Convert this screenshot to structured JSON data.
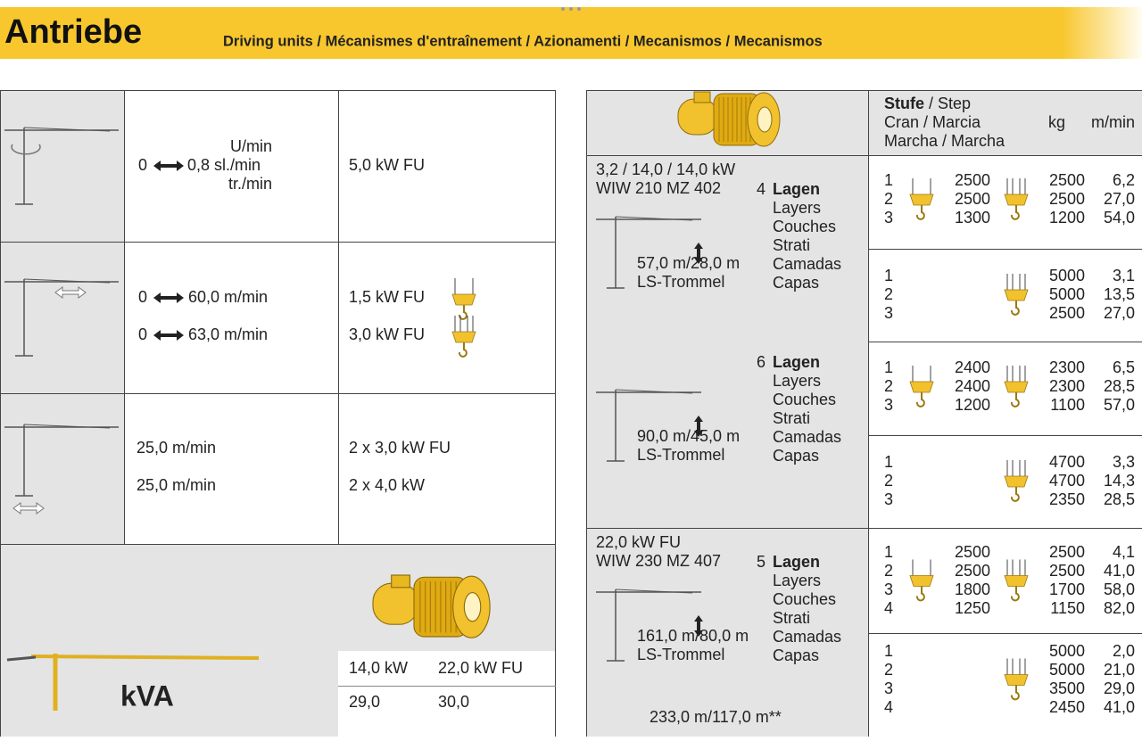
{
  "header": {
    "title": "Antriebe",
    "subtitle": "Driving units / Mécanismes d'entraînement / Azionamenti / Mecanismos / Mecanismos"
  },
  "left_table": {
    "slewing": {
      "top_unit": "U/min",
      "from": "0",
      "to": "0,8 sl./min",
      "bottom_unit": "tr./min",
      "power": "5,0 kW FU"
    },
    "trolley": {
      "speeds": [
        {
          "from": "0",
          "to": "60,0 m/min"
        },
        {
          "from": "0",
          "to": "63,0 m/min"
        }
      ],
      "powers": [
        "1,5 kW FU",
        "3,0 kW FU"
      ]
    },
    "travel": {
      "speeds": [
        "25,0 m/min",
        "25,0 m/min"
      ],
      "powers": [
        "2 x 3,0 kW FU",
        "2 x 4,0 kW"
      ]
    },
    "kva": {
      "label": "kVA",
      "headers": [
        "14,0 kW",
        "22,0 kW FU"
      ],
      "values": [
        "29,0",
        "30,0"
      ]
    }
  },
  "right_table": {
    "header": {
      "stufe": "Stufe",
      "step": "/ Step",
      "line2": "Cran / Marcia",
      "line3": "Marcha / Marcha",
      "kg": "kg",
      "speed": "m/min"
    },
    "drives": [
      {
        "power": "3,2 / 14,0 / 14,0 kW",
        "model": "WIW 210 MZ 402",
        "configs": [
          {
            "layers": "4",
            "lagen": "Lagen",
            "translations": [
              "Layers",
              "Couches",
              "Strati",
              "Camadas",
              "Capas"
            ],
            "rope": "57,0 m/28,0 m",
            "drum": "LS-Trommel"
          },
          {
            "layers": "6",
            "lagen": "Lagen",
            "translations": [
              "Layers",
              "Couches",
              "Strati",
              "Camadas",
              "Capas"
            ],
            "rope": "90,0 m/45,0 m",
            "drum": "LS-Trommel"
          }
        ]
      },
      {
        "power": "22,0 kW FU",
        "model": "WIW 230 MZ 407",
        "configs": [
          {
            "layers": "5",
            "lagen": "Lagen",
            "translations": [
              "Layers",
              "Couches",
              "Strati",
              "Camadas",
              "Capas"
            ],
            "rope": "161,0 m/80,0 m",
            "drum": "LS-Trommel"
          }
        ],
        "footer": "233,0 m/117,0 m**"
      }
    ],
    "rows": [
      {
        "steps": [
          "1",
          "2",
          "3"
        ],
        "kg_2fall": [
          "2500",
          "2500",
          "1300"
        ],
        "kg": [
          "2500",
          "2500",
          "1200"
        ],
        "speed": [
          "6,2",
          "27,0",
          "54,0"
        ]
      },
      {
        "steps": [
          "1",
          "2",
          "3"
        ],
        "kg": [
          "5000",
          "5000",
          "2500"
        ],
        "speed": [
          "3,1",
          "13,5",
          "27,0"
        ]
      },
      {
        "steps": [
          "1",
          "2",
          "3"
        ],
        "kg_2fall": [
          "2400",
          "2400",
          "1200"
        ],
        "kg": [
          "2300",
          "2300",
          "1100"
        ],
        "speed": [
          "6,5",
          "28,5",
          "57,0"
        ]
      },
      {
        "steps": [
          "1",
          "2",
          "3"
        ],
        "kg": [
          "4700",
          "4700",
          "2350"
        ],
        "speed": [
          "3,3",
          "14,3",
          "28,5"
        ]
      },
      {
        "steps": [
          "1",
          "2",
          "3",
          "4"
        ],
        "kg_2fall": [
          "2500",
          "2500",
          "1800",
          "1250"
        ],
        "kg": [
          "2500",
          "2500",
          "1700",
          "1150"
        ],
        "speed": [
          "4,1",
          "41,0",
          "58,0",
          "82,0"
        ]
      },
      {
        "steps": [
          "1",
          "2",
          "3",
          "4"
        ],
        "kg": [
          "5000",
          "5000",
          "3500",
          "2450"
        ],
        "speed": [
          "2,0",
          "21,0",
          "29,0",
          "41,0"
        ]
      }
    ]
  }
}
